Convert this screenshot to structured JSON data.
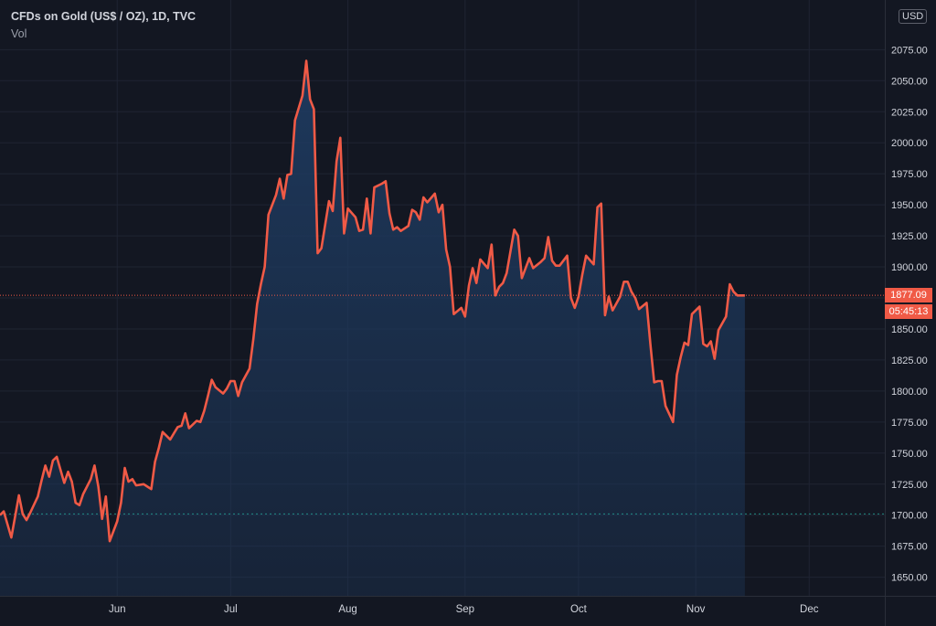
{
  "header": {
    "symbol_title": "CFDs on Gold (US$ / OZ), 1D, TVC",
    "vol_label": "Vol",
    "currency_button": "USD"
  },
  "price_tags": {
    "last_price": "1877.09",
    "countdown": "05:45:13"
  },
  "colors": {
    "background": "#131722",
    "line": "#f05a46",
    "area_fill": "#1e3a5f",
    "grid": "#1f2433",
    "axis_text": "#d1d4dc",
    "last_price_line": "#f05a46",
    "reference_line": "#26a69a"
  },
  "chart_data": {
    "type": "area",
    "title": "CFDs on Gold (US$ / OZ), 1D, TVC",
    "xlabel": "",
    "ylabel": "",
    "x_range": [
      "2020-05-01",
      "2020-12-21"
    ],
    "ylim": [
      1635,
      2115
    ],
    "y_ticks": [
      1650,
      1675,
      1700,
      1725,
      1750,
      1775,
      1800,
      1825,
      1850,
      1875,
      1900,
      1925,
      1950,
      1975,
      2000,
      2025,
      2050,
      2075
    ],
    "y_tick_labels": [
      "1650.00",
      "1675.00",
      "1700.00",
      "1725.00",
      "1750.00",
      "1775.00",
      "1800.00",
      "1825.00",
      "1850.00",
      "1875.00",
      "1900.00",
      "1925.00",
      "1950.00",
      "1975.00",
      "2000.00",
      "2025.00",
      "2050.00",
      "2075.00"
    ],
    "x_ticks": [
      {
        "label": "Jun",
        "date": "2020-06-01"
      },
      {
        "label": "Jul",
        "date": "2020-07-01"
      },
      {
        "label": "Aug",
        "date": "2020-08-01"
      },
      {
        "label": "Sep",
        "date": "2020-09-01"
      },
      {
        "label": "Oct",
        "date": "2020-10-01"
      },
      {
        "label": "Nov",
        "date": "2020-11-01"
      },
      {
        "label": "Dec",
        "date": "2020-12-01"
      }
    ],
    "grid": true,
    "last_value": 1877.09,
    "reference_value": 1701,
    "series": [
      {
        "values": [
          [
            "2020-05-01",
            1700
          ],
          [
            "2020-05-02",
            1703
          ],
          [
            "2020-05-04",
            1682
          ],
          [
            "2020-05-06",
            1716
          ],
          [
            "2020-05-07",
            1701
          ],
          [
            "2020-05-08",
            1696
          ],
          [
            "2020-05-09",
            1702
          ],
          [
            "2020-05-11",
            1715
          ],
          [
            "2020-05-12",
            1728
          ],
          [
            "2020-05-13",
            1740
          ],
          [
            "2020-05-14",
            1731
          ],
          [
            "2020-05-15",
            1744
          ],
          [
            "2020-05-16",
            1747
          ],
          [
            "2020-05-18",
            1726
          ],
          [
            "2020-05-19",
            1735
          ],
          [
            "2020-05-20",
            1727
          ],
          [
            "2020-05-21",
            1710
          ],
          [
            "2020-05-22",
            1708
          ],
          [
            "2020-05-23",
            1717
          ],
          [
            "2020-05-25",
            1729
          ],
          [
            "2020-05-26",
            1740
          ],
          [
            "2020-05-27",
            1723
          ],
          [
            "2020-05-28",
            1697
          ],
          [
            "2020-05-29",
            1715
          ],
          [
            "2020-05-30",
            1679
          ],
          [
            "2020-06-01",
            1695
          ],
          [
            "2020-06-02",
            1710
          ],
          [
            "2020-06-03",
            1738
          ],
          [
            "2020-06-04",
            1727
          ],
          [
            "2020-06-05",
            1729
          ],
          [
            "2020-06-06",
            1724
          ],
          [
            "2020-06-08",
            1725
          ],
          [
            "2020-06-09",
            1723
          ],
          [
            "2020-06-10",
            1721
          ],
          [
            "2020-06-11",
            1743
          ],
          [
            "2020-06-12",
            1754
          ],
          [
            "2020-06-13",
            1767
          ],
          [
            "2020-06-15",
            1761
          ],
          [
            "2020-06-16",
            1766
          ],
          [
            "2020-06-17",
            1771
          ],
          [
            "2020-06-18",
            1772
          ],
          [
            "2020-06-19",
            1782
          ],
          [
            "2020-06-20",
            1770
          ],
          [
            "2020-06-22",
            1776
          ],
          [
            "2020-06-23",
            1775
          ],
          [
            "2020-06-24",
            1784
          ],
          [
            "2020-06-25",
            1796
          ],
          [
            "2020-06-26",
            1809
          ],
          [
            "2020-06-27",
            1803
          ],
          [
            "2020-06-29",
            1798
          ],
          [
            "2020-06-30",
            1802
          ],
          [
            "2020-07-01",
            1808
          ],
          [
            "2020-07-02",
            1808
          ],
          [
            "2020-07-03",
            1796
          ],
          [
            "2020-07-04",
            1807
          ],
          [
            "2020-07-06",
            1818
          ],
          [
            "2020-07-07",
            1842
          ],
          [
            "2020-07-08",
            1870
          ],
          [
            "2020-07-09",
            1886
          ],
          [
            "2020-07-10",
            1900
          ],
          [
            "2020-07-11",
            1942
          ],
          [
            "2020-07-13",
            1958
          ],
          [
            "2020-07-14",
            1971
          ],
          [
            "2020-07-15",
            1955
          ],
          [
            "2020-07-16",
            1974
          ],
          [
            "2020-07-17",
            1975
          ],
          [
            "2020-07-18",
            2018
          ],
          [
            "2020-07-20",
            2038
          ],
          [
            "2020-07-21",
            2066
          ],
          [
            "2020-07-22",
            2035
          ],
          [
            "2020-07-23",
            2027
          ],
          [
            "2020-07-24",
            1911
          ],
          [
            "2020-07-25",
            1915
          ],
          [
            "2020-07-27",
            1953
          ],
          [
            "2020-07-28",
            1945
          ],
          [
            "2020-07-29",
            1985
          ],
          [
            "2020-07-30",
            2004
          ],
          [
            "2020-07-31",
            1927
          ],
          [
            "2020-08-01",
            1947
          ],
          [
            "2020-08-03",
            1940
          ],
          [
            "2020-08-04",
            1929
          ],
          [
            "2020-08-05",
            1930
          ],
          [
            "2020-08-06",
            1955
          ],
          [
            "2020-08-07",
            1927
          ],
          [
            "2020-08-08",
            1964
          ],
          [
            "2020-08-10",
            1967
          ],
          [
            "2020-08-11",
            1969
          ],
          [
            "2020-08-12",
            1943
          ],
          [
            "2020-08-13",
            1930
          ],
          [
            "2020-08-14",
            1932
          ],
          [
            "2020-08-15",
            1929
          ],
          [
            "2020-08-17",
            1933
          ],
          [
            "2020-08-18",
            1946
          ],
          [
            "2020-08-19",
            1944
          ],
          [
            "2020-08-20",
            1938
          ],
          [
            "2020-08-21",
            1956
          ],
          [
            "2020-08-22",
            1952
          ],
          [
            "2020-08-24",
            1959
          ],
          [
            "2020-08-25",
            1944
          ],
          [
            "2020-08-26",
            1950
          ],
          [
            "2020-08-27",
            1914
          ],
          [
            "2020-08-28",
            1900
          ],
          [
            "2020-08-29",
            1862
          ],
          [
            "2020-08-31",
            1867
          ],
          [
            "2020-09-01",
            1860
          ],
          [
            "2020-09-02",
            1885
          ],
          [
            "2020-09-03",
            1899
          ],
          [
            "2020-09-04",
            1887
          ],
          [
            "2020-09-05",
            1906
          ],
          [
            "2020-09-07",
            1899
          ],
          [
            "2020-09-08",
            1918
          ],
          [
            "2020-09-09",
            1877
          ],
          [
            "2020-09-10",
            1884
          ],
          [
            "2020-09-11",
            1887
          ],
          [
            "2020-09-12",
            1895
          ],
          [
            "2020-09-14",
            1930
          ],
          [
            "2020-09-15",
            1925
          ],
          [
            "2020-09-16",
            1891
          ],
          [
            "2020-09-17",
            1899
          ],
          [
            "2020-09-18",
            1907
          ],
          [
            "2020-09-19",
            1899
          ],
          [
            "2020-09-21",
            1904
          ],
          [
            "2020-09-22",
            1907
          ],
          [
            "2020-09-23",
            1924
          ],
          [
            "2020-09-24",
            1905
          ],
          [
            "2020-09-25",
            1901
          ],
          [
            "2020-09-26",
            1901
          ],
          [
            "2020-09-28",
            1909
          ],
          [
            "2020-09-29",
            1875
          ],
          [
            "2020-09-30",
            1867
          ],
          [
            "2020-10-01",
            1876
          ],
          [
            "2020-10-02",
            1894
          ],
          [
            "2020-10-03",
            1909
          ],
          [
            "2020-10-05",
            1902
          ],
          [
            "2020-10-06",
            1948
          ],
          [
            "2020-10-07",
            1951
          ],
          [
            "2020-10-08",
            1861
          ],
          [
            "2020-10-09",
            1876
          ],
          [
            "2020-10-10",
            1865
          ],
          [
            "2020-10-12",
            1876
          ],
          [
            "2020-10-13",
            1888
          ],
          [
            "2020-10-14",
            1888
          ],
          [
            "2020-10-15",
            1880
          ],
          [
            "2020-10-16",
            1875
          ],
          [
            "2020-10-17",
            1866
          ],
          [
            "2020-10-19",
            1871
          ],
          [
            "2020-10-20",
            1838
          ],
          [
            "2020-10-21",
            1807
          ],
          [
            "2020-10-22",
            1808
          ],
          [
            "2020-10-23",
            1808
          ],
          [
            "2020-10-24",
            1788
          ],
          [
            "2020-10-26",
            1775
          ],
          [
            "2020-10-27",
            1813
          ],
          [
            "2020-10-28",
            1827
          ],
          [
            "2020-10-29",
            1839
          ],
          [
            "2020-10-30",
            1837
          ],
          [
            "2020-10-31",
            1862
          ],
          [
            "2020-11-02",
            1868
          ],
          [
            "2020-11-03",
            1838
          ],
          [
            "2020-11-04",
            1836
          ],
          [
            "2020-11-05",
            1840
          ],
          [
            "2020-11-06",
            1826
          ],
          [
            "2020-11-07",
            1849
          ],
          [
            "2020-11-09",
            1860
          ],
          [
            "2020-11-10",
            1886
          ],
          [
            "2020-11-11",
            1880
          ],
          [
            "2020-11-12",
            1877
          ],
          [
            "2020-11-14",
            1877
          ]
        ]
      }
    ]
  }
}
